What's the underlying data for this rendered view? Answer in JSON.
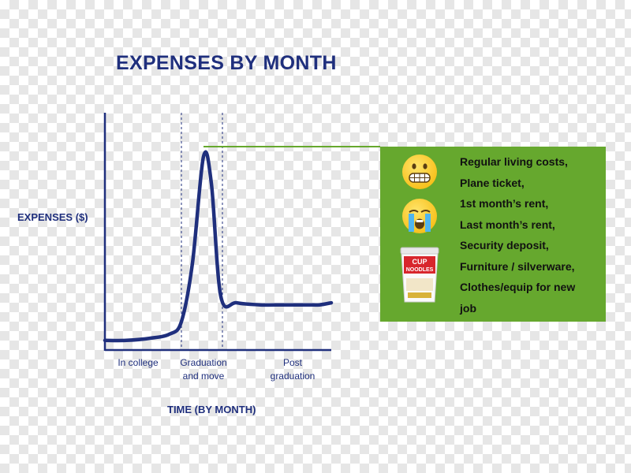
{
  "chart_data": {
    "type": "line",
    "title": "EXPENSES BY MONTH",
    "xlabel": "TIME (BY MONTH)",
    "ylabel": "EXPENSES ($)",
    "grid": false,
    "phases": [
      {
        "lines": [
          "In college"
        ]
      },
      {
        "lines": [
          "Graduation",
          "and move"
        ]
      },
      {
        "lines": [
          "Post",
          "graduation"
        ]
      }
    ],
    "series": [
      {
        "values": [
          0.05,
          0.05,
          0.06,
          0.08,
          0.14,
          0.42,
          0.93,
          0.8,
          0.26,
          0.23,
          0.22,
          0.22,
          0.22,
          0.22,
          0.23
        ]
      }
    ]
  },
  "callout": {
    "items": [
      "Regular living costs,",
      "Plane ticket,",
      "1st month’s rent,",
      "Last month’s rent,",
      "Security deposit,",
      "Furniture / silverware,",
      "Clothes/equip for new",
      "job"
    ],
    "cup_text": [
      "CUP",
      "NOODLES"
    ],
    "icons": [
      "grimacing-face-icon",
      "crying-face-icon",
      "cup-noodles-icon"
    ]
  },
  "colors": {
    "line": "#1f2f7d",
    "axis": "#1f2f7d",
    "panel": "#66a82e",
    "connector": "#66a82e"
  }
}
